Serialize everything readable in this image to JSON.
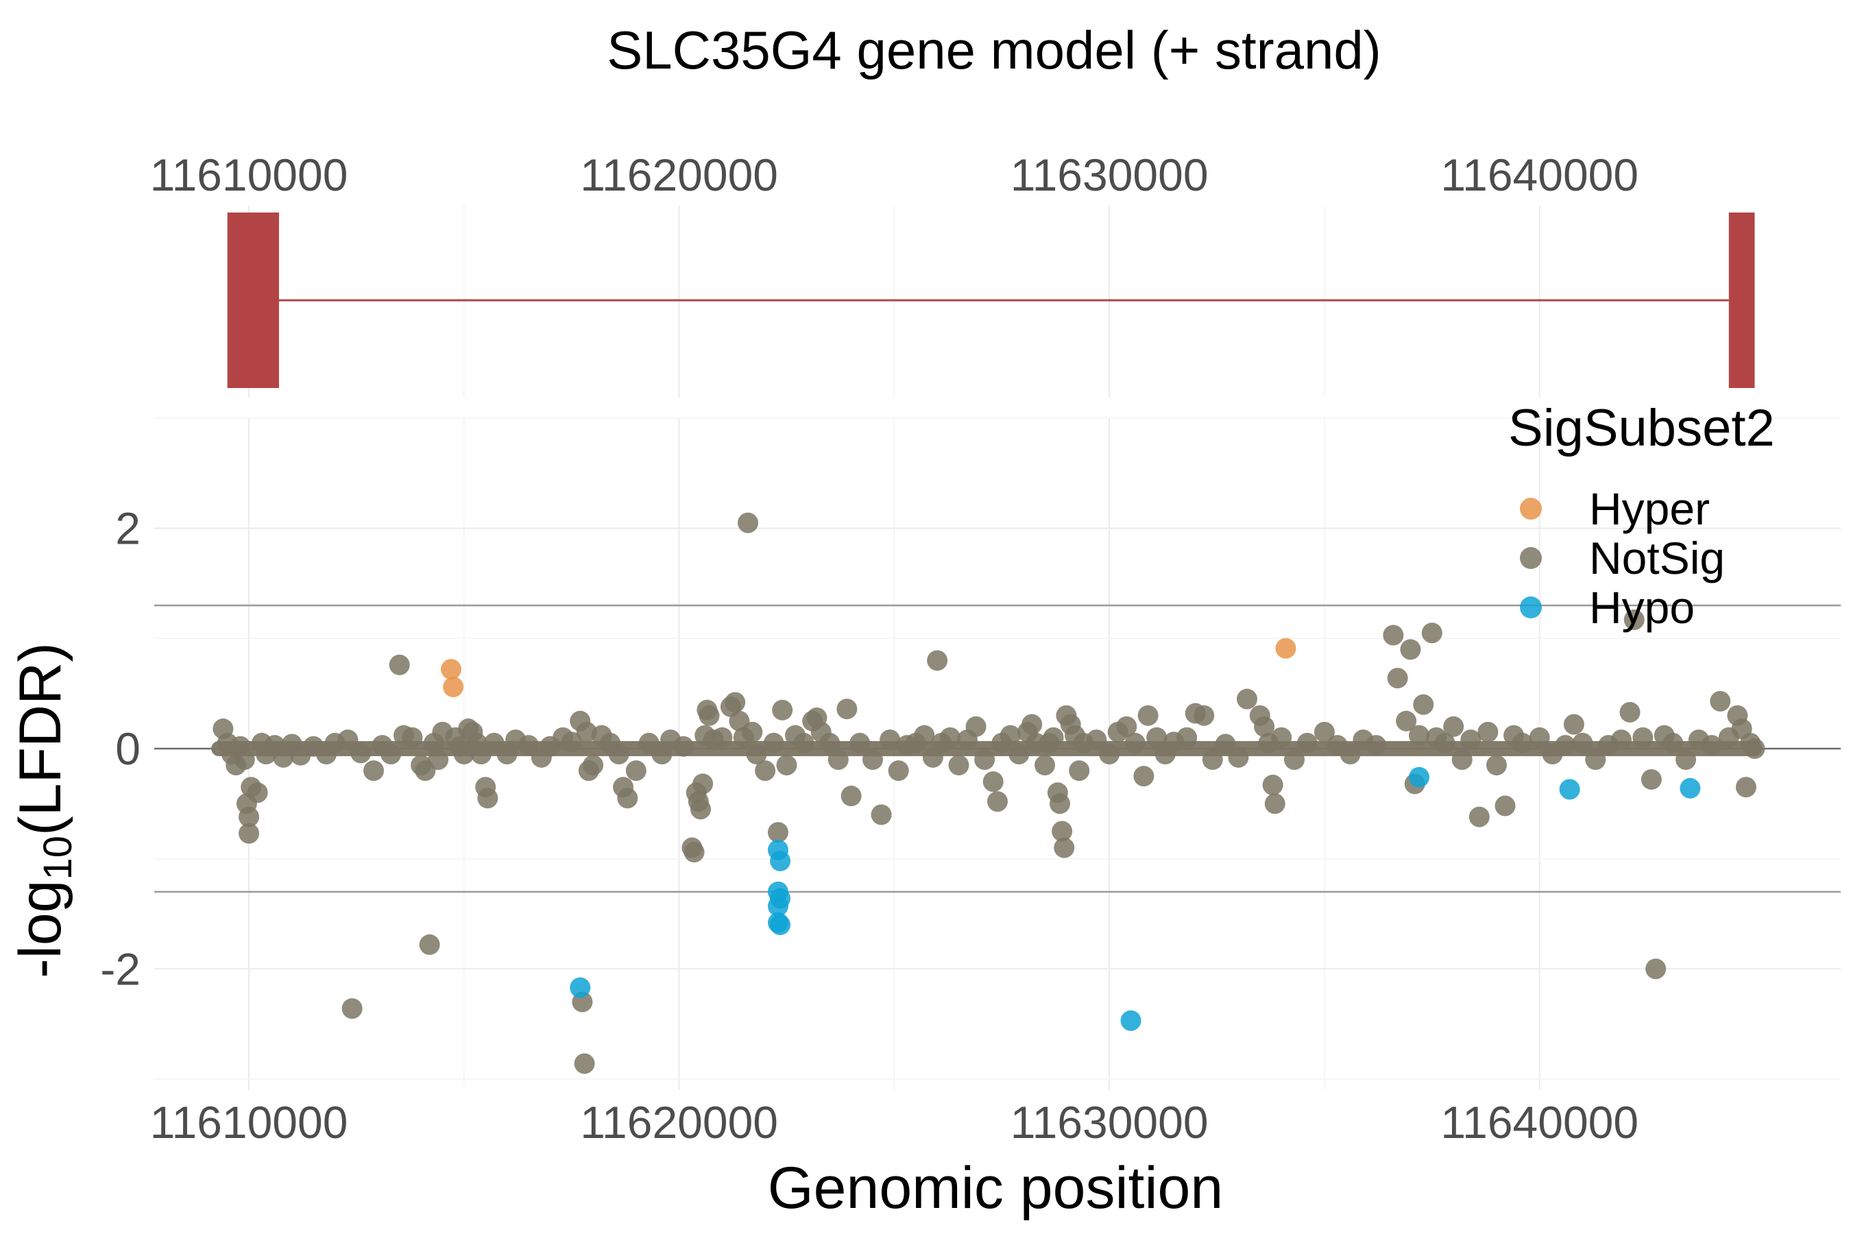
{
  "chart_data": {
    "title": "SLC35G4 gene model (+ strand)",
    "gene_panel": {
      "type": "gene-model",
      "x_ticks": [
        11610000,
        11620000,
        11630000,
        11640000
      ],
      "xlim": [
        11607800,
        11647000
      ],
      "exons": [
        {
          "start": 11609500,
          "end": 11610700
        },
        {
          "start": 11644400,
          "end": 11645000
        }
      ],
      "intron": {
        "start": 11610700,
        "end": 11644400
      },
      "color": "#b34446"
    },
    "scatter_panel": {
      "type": "scatter",
      "xlabel": "Genomic position",
      "ylabel_base": "-log",
      "ylabel_sub": "10",
      "ylabel_rest": "(LFDR)",
      "x_ticks": [
        11610000,
        11620000,
        11630000,
        11640000
      ],
      "y_ticks": [
        2,
        0,
        -2
      ],
      "y_tick_labels": [
        "2",
        "0",
        "-2"
      ],
      "xlim": [
        11607800,
        11647000
      ],
      "ylim": [
        -3.1,
        3.0
      ],
      "hlines": [
        1.3,
        -1.3
      ],
      "zero_line": 0,
      "baseline_band": {
        "x_start": 11609300,
        "x_end": 11645000,
        "y": 0
      },
      "legend": {
        "title": "SigSubset2",
        "position": "top-right",
        "entries": [
          {
            "name": "Hyper",
            "color": "#e8944a"
          },
          {
            "name": "NotSig",
            "color": "#7d7564"
          },
          {
            "name": "Hypo",
            "color": "#0fa3d6"
          }
        ]
      },
      "series": [
        {
          "name": "Hyper",
          "color": "#e8944a",
          "points": [
            [
              11614700,
              0.72
            ],
            [
              11614750,
              0.56
            ],
            [
              11634100,
              0.91
            ]
          ]
        },
        {
          "name": "Hypo",
          "color": "#0fa3d6",
          "points": [
            [
              11617700,
              -2.17
            ],
            [
              11622300,
              -0.92
            ],
            [
              11622350,
              -1.02
            ],
            [
              11622300,
              -1.3
            ],
            [
              11622350,
              -1.36
            ],
            [
              11622300,
              -1.43
            ],
            [
              11622300,
              -1.58
            ],
            [
              11622350,
              -1.6
            ],
            [
              11630500,
              -2.47
            ],
            [
              11637200,
              -0.26
            ],
            [
              11640700,
              -0.37
            ],
            [
              11643500,
              -0.36
            ]
          ]
        },
        {
          "name": "NotSig",
          "color": "#7d7564",
          "points": [
            [
              11609400,
              0.18
            ],
            [
              11609500,
              0.05
            ],
            [
              11609600,
              -0.05
            ],
            [
              11609700,
              -0.15
            ],
            [
              11609800,
              0.02
            ],
            [
              11609900,
              -0.1
            ],
            [
              11609950,
              -0.5
            ],
            [
              11610000,
              -0.62
            ],
            [
              11610000,
              -0.77
            ],
            [
              11610050,
              -0.35
            ],
            [
              11610200,
              -0.4
            ],
            [
              11610300,
              0.05
            ],
            [
              11610400,
              -0.05
            ],
            [
              11610600,
              0.03
            ],
            [
              11610800,
              -0.08
            ],
            [
              11611000,
              0.04
            ],
            [
              11611200,
              -0.06
            ],
            [
              11611500,
              0.02
            ],
            [
              11611800,
              -0.05
            ],
            [
              11612000,
              0.05
            ],
            [
              11612300,
              0.08
            ],
            [
              11612400,
              -2.36
            ],
            [
              11612600,
              -0.04
            ],
            [
              11612900,
              -0.2
            ],
            [
              11613100,
              0.03
            ],
            [
              11613300,
              -0.05
            ],
            [
              11613500,
              0.76
            ],
            [
              11613600,
              0.12
            ],
            [
              11613800,
              0.1
            ],
            [
              11614000,
              -0.15
            ],
            [
              11614100,
              -0.2
            ],
            [
              11614200,
              -1.78
            ],
            [
              11614300,
              0.05
            ],
            [
              11614400,
              -0.1
            ],
            [
              11614500,
              0.15
            ],
            [
              11614800,
              0.1
            ],
            [
              11614900,
              0.02
            ],
            [
              11615000,
              -0.05
            ],
            [
              11615100,
              0.18
            ],
            [
              11615200,
              0.15
            ],
            [
              11615300,
              0.05
            ],
            [
              11615400,
              -0.05
            ],
            [
              11615500,
              -0.35
            ],
            [
              11615550,
              -0.45
            ],
            [
              11615700,
              0.05
            ],
            [
              11616000,
              -0.05
            ],
            [
              11616200,
              0.08
            ],
            [
              11616500,
              0.03
            ],
            [
              11616800,
              -0.08
            ],
            [
              11617000,
              0.02
            ],
            [
              11617300,
              0.1
            ],
            [
              11617500,
              0.06
            ],
            [
              11617700,
              0.25
            ],
            [
              11617750,
              -2.3
            ],
            [
              11617800,
              -2.86
            ],
            [
              11617850,
              0.15
            ],
            [
              11617900,
              -0.2
            ],
            [
              11618000,
              -0.15
            ],
            [
              11618200,
              0.12
            ],
            [
              11618400,
              0.05
            ],
            [
              11618600,
              -0.05
            ],
            [
              11618700,
              -0.35
            ],
            [
              11618800,
              -0.45
            ],
            [
              11619000,
              -0.2
            ],
            [
              11619300,
              0.05
            ],
            [
              11619600,
              -0.05
            ],
            [
              11619800,
              0.08
            ],
            [
              11620100,
              0.02
            ],
            [
              11620300,
              -0.9
            ],
            [
              11620350,
              -0.94
            ],
            [
              11620400,
              -0.4
            ],
            [
              11620450,
              -0.48
            ],
            [
              11620500,
              -0.55
            ],
            [
              11620550,
              -0.32
            ],
            [
              11620600,
              0.12
            ],
            [
              11620650,
              0.35
            ],
            [
              11620700,
              0.3
            ],
            [
              11620800,
              0.08
            ],
            [
              11621000,
              0.1
            ],
            [
              11621200,
              0.38
            ],
            [
              11621300,
              0.42
            ],
            [
              11621400,
              0.25
            ],
            [
              11621500,
              0.1
            ],
            [
              11621600,
              2.05
            ],
            [
              11621700,
              0.15
            ],
            [
              11621800,
              -0.05
            ],
            [
              11622000,
              -0.2
            ],
            [
              11622200,
              0.05
            ],
            [
              11622300,
              -0.76
            ],
            [
              11622400,
              0.35
            ],
            [
              11622500,
              -0.15
            ],
            [
              11622700,
              0.12
            ],
            [
              11622900,
              0.05
            ],
            [
              11623100,
              0.25
            ],
            [
              11623200,
              0.28
            ],
            [
              11623300,
              0.15
            ],
            [
              11623500,
              0.05
            ],
            [
              11623700,
              -0.1
            ],
            [
              11623900,
              0.36
            ],
            [
              11624000,
              -0.43
            ],
            [
              11624200,
              0.05
            ],
            [
              11624500,
              -0.1
            ],
            [
              11624700,
              -0.6
            ],
            [
              11624900,
              0.08
            ],
            [
              11625100,
              -0.2
            ],
            [
              11625300,
              0.03
            ],
            [
              11625500,
              0.05
            ],
            [
              11625700,
              0.12
            ],
            [
              11625900,
              -0.08
            ],
            [
              11626000,
              0.8
            ],
            [
              11626100,
              0.05
            ],
            [
              11626300,
              0.1
            ],
            [
              11626500,
              -0.15
            ],
            [
              11626700,
              0.08
            ],
            [
              11626900,
              0.2
            ],
            [
              11627100,
              -0.1
            ],
            [
              11627300,
              -0.3
            ],
            [
              11627400,
              -0.48
            ],
            [
              11627500,
              0.05
            ],
            [
              11627700,
              0.12
            ],
            [
              11627900,
              -0.05
            ],
            [
              11628100,
              0.15
            ],
            [
              11628200,
              0.22
            ],
            [
              11628300,
              0.05
            ],
            [
              11628500,
              -0.15
            ],
            [
              11628600,
              0.05
            ],
            [
              11628700,
              0.1
            ],
            [
              11628800,
              -0.4
            ],
            [
              11628850,
              -0.5
            ],
            [
              11628900,
              -0.75
            ],
            [
              11628950,
              -0.9
            ],
            [
              11629000,
              0.3
            ],
            [
              11629100,
              0.22
            ],
            [
              11629200,
              0.12
            ],
            [
              11629300,
              -0.2
            ],
            [
              11629400,
              0.05
            ],
            [
              11629700,
              0.08
            ],
            [
              11630000,
              -0.05
            ],
            [
              11630200,
              0.15
            ],
            [
              11630400,
              0.2
            ],
            [
              11630600,
              0.05
            ],
            [
              11630800,
              -0.25
            ],
            [
              11630900,
              0.3
            ],
            [
              11631100,
              0.1
            ],
            [
              11631300,
              -0.05
            ],
            [
              11631500,
              0.06
            ],
            [
              11631800,
              0.1
            ],
            [
              11632000,
              0.32
            ],
            [
              11632200,
              0.3
            ],
            [
              11632400,
              -0.1
            ],
            [
              11632700,
              0.04
            ],
            [
              11633000,
              -0.08
            ],
            [
              11633200,
              0.45
            ],
            [
              11633500,
              0.3
            ],
            [
              11633600,
              0.2
            ],
            [
              11633700,
              0.05
            ],
            [
              11633800,
              -0.33
            ],
            [
              11633850,
              -0.5
            ],
            [
              11634000,
              0.1
            ],
            [
              11634300,
              -0.1
            ],
            [
              11634600,
              0.05
            ],
            [
              11635000,
              0.15
            ],
            [
              11635300,
              0.03
            ],
            [
              11635600,
              -0.05
            ],
            [
              11635900,
              0.08
            ],
            [
              11636200,
              0.03
            ],
            [
              11636600,
              1.03
            ],
            [
              11636700,
              0.64
            ],
            [
              11636900,
              0.25
            ],
            [
              11637000,
              0.9
            ],
            [
              11637100,
              -0.32
            ],
            [
              11637200,
              0.12
            ],
            [
              11637300,
              0.4
            ],
            [
              11637500,
              1.05
            ],
            [
              11637600,
              0.1
            ],
            [
              11637800,
              0.05
            ],
            [
              11638000,
              0.2
            ],
            [
              11638200,
              -0.1
            ],
            [
              11638400,
              0.08
            ],
            [
              11638600,
              -0.62
            ],
            [
              11638800,
              0.15
            ],
            [
              11639000,
              -0.15
            ],
            [
              11639200,
              -0.52
            ],
            [
              11639400,
              0.12
            ],
            [
              11639600,
              0.05
            ],
            [
              11640000,
              0.1
            ],
            [
              11640300,
              -0.05
            ],
            [
              11640600,
              0.03
            ],
            [
              11640800,
              0.22
            ],
            [
              11641000,
              0.05
            ],
            [
              11641300,
              -0.1
            ],
            [
              11641600,
              0.03
            ],
            [
              11641900,
              0.08
            ],
            [
              11642100,
              0.33
            ],
            [
              11642200,
              1.17
            ],
            [
              11642400,
              0.1
            ],
            [
              11642600,
              -0.28
            ],
            [
              11642700,
              -2.0
            ],
            [
              11642900,
              0.12
            ],
            [
              11643100,
              0.05
            ],
            [
              11643400,
              -0.1
            ],
            [
              11643700,
              0.08
            ],
            [
              11644000,
              0.03
            ],
            [
              11644200,
              0.43
            ],
            [
              11644400,
              0.1
            ],
            [
              11644600,
              0.3
            ],
            [
              11644700,
              0.18
            ],
            [
              11644800,
              -0.35
            ],
            [
              11644900,
              0.05
            ],
            [
              11645000,
              0.0
            ]
          ]
        }
      ]
    }
  }
}
